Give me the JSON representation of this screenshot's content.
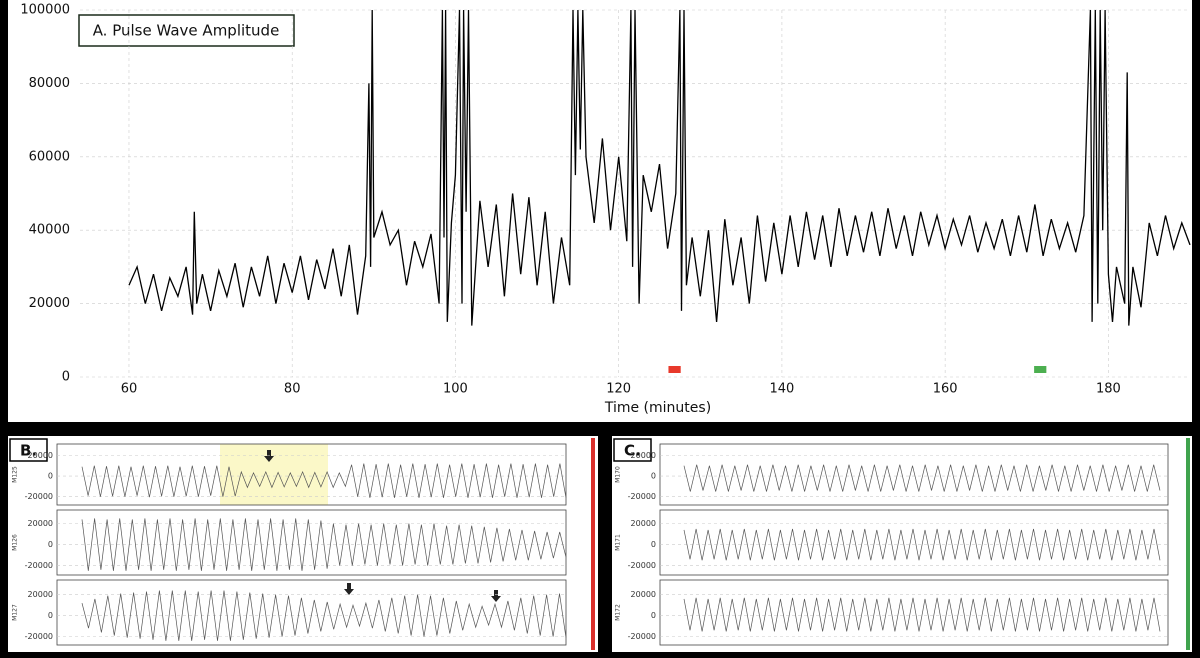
{
  "chart_data": [
    {
      "type": "line",
      "title": "A. Pulse Wave Amplitude",
      "xlabel": "Time (minutes)",
      "color": "#000000",
      "grid": true,
      "xlim": [
        54,
        190
      ],
      "xticks": [
        60,
        80,
        100,
        120,
        140,
        160,
        180
      ],
      "ylim": [
        0,
        100000
      ],
      "yticks": [
        0,
        20000,
        40000,
        60000,
        80000,
        100000
      ],
      "markers": [
        {
          "start": 126.1,
          "end": 127.6,
          "color": "#e8392b"
        },
        {
          "start": 170.9,
          "end": 172.4,
          "color": "#4caf50"
        }
      ],
      "x": [
        60,
        61,
        62,
        63,
        64,
        65,
        66,
        67,
        67.8,
        68,
        68.3,
        69,
        70,
        71,
        72,
        73,
        74,
        75,
        76,
        77,
        78,
        79,
        80,
        81,
        82,
        83,
        84,
        85,
        86,
        87,
        88,
        89,
        89.4,
        89.6,
        89.8,
        90,
        91,
        92,
        93,
        94,
        95,
        96,
        97,
        98,
        98.4,
        98.6,
        98.8,
        99,
        99.5,
        100,
        100.5,
        100.8,
        101,
        101.3,
        101.6,
        102,
        103,
        104,
        105,
        106,
        107,
        108,
        109,
        110,
        111,
        112,
        113,
        114,
        114.4,
        114.7,
        115,
        115.3,
        115.6,
        116,
        117,
        118,
        119,
        120,
        121,
        121.5,
        121.7,
        122,
        122.5,
        123,
        124,
        125,
        126,
        127,
        127.5,
        127.7,
        128,
        128.3,
        129,
        130,
        131,
        132,
        133,
        134,
        135,
        136,
        137,
        138,
        139,
        140,
        141,
        142,
        143,
        144,
        145,
        146,
        147,
        148,
        149,
        150,
        151,
        152,
        153,
        154,
        155,
        156,
        157,
        158,
        159,
        160,
        161,
        162,
        163,
        164,
        165,
        166,
        167,
        168,
        169,
        170,
        171,
        172,
        173,
        174,
        175,
        176,
        177,
        177.8,
        178,
        178.4,
        178.7,
        179,
        179.3,
        179.6,
        180,
        180.5,
        181,
        182,
        182.3,
        182.5,
        183,
        184,
        185,
        186,
        187,
        188,
        189,
        190
      ],
      "values": [
        25000,
        30000,
        20000,
        28000,
        18000,
        27000,
        22000,
        30000,
        17000,
        45000,
        20000,
        28000,
        18000,
        29000,
        22000,
        31000,
        19000,
        30000,
        22000,
        33000,
        20000,
        31000,
        23000,
        33000,
        21000,
        32000,
        24000,
        35000,
        22000,
        36000,
        17000,
        33000,
        80000,
        30000,
        100000,
        38000,
        45000,
        36000,
        40000,
        25000,
        37000,
        30000,
        39000,
        20000,
        100000,
        38000,
        100000,
        15000,
        42000,
        55000,
        100000,
        20000,
        100000,
        45000,
        100000,
        14000,
        48000,
        30000,
        47000,
        22000,
        50000,
        28000,
        49000,
        25000,
        45000,
        20000,
        38000,
        25000,
        100000,
        55000,
        100000,
        62000,
        100000,
        60000,
        42000,
        65000,
        40000,
        60000,
        37000,
        100000,
        30000,
        100000,
        20000,
        55000,
        45000,
        58000,
        35000,
        50000,
        100000,
        18000,
        100000,
        25000,
        38000,
        22000,
        40000,
        15000,
        43000,
        25000,
        38000,
        20000,
        44000,
        26000,
        42000,
        28000,
        44000,
        30000,
        45000,
        32000,
        44000,
        30000,
        46000,
        33000,
        44000,
        34000,
        45000,
        33000,
        46000,
        35000,
        44000,
        33000,
        45000,
        36000,
        44000,
        35000,
        43000,
        36000,
        44000,
        34000,
        42000,
        35000,
        43000,
        33000,
        44000,
        34000,
        47000,
        33000,
        43000,
        35000,
        42000,
        34000,
        44000,
        100000,
        15000,
        100000,
        20000,
        100000,
        40000,
        100000,
        28000,
        15000,
        30000,
        20000,
        83000,
        14000,
        30000,
        19000,
        42000,
        33000,
        44000,
        35000,
        42000,
        36000
      ]
    },
    {
      "type": "line",
      "ylabel": "M125",
      "color": "#555555",
      "grid": true,
      "ylim": [
        -28000,
        31000
      ],
      "yticks": [
        -20000,
        0,
        20000
      ],
      "values": [
        9000,
        -19000,
        10000,
        -20000,
        9500,
        -19500,
        10000,
        -20000,
        9000,
        -19000,
        10000,
        -20500,
        9500,
        -19500,
        10000,
        -20000,
        9000,
        -19500,
        10000,
        -20000,
        9500,
        -19000,
        10000,
        -20000,
        9000,
        -19500,
        4000,
        -11000,
        3000,
        -10000,
        4000,
        -11000,
        3500,
        -10500,
        3000,
        -10000,
        4000,
        -11000,
        3500,
        -10500,
        4000,
        -11000,
        3000,
        -10000,
        11000,
        -20000,
        12000,
        -21000,
        11500,
        -20500,
        12000,
        -21000,
        11000,
        -20000,
        12000,
        -21000,
        11500,
        -20500,
        12000,
        -21000,
        11000,
        -20000,
        12000,
        -21000,
        11500,
        -20500,
        12000,
        -21000,
        11000,
        -20000,
        12000,
        -21000,
        11500,
        -20500,
        12000,
        -21000,
        11000,
        -20000,
        12000,
        -21000
      ]
    },
    {
      "type": "line",
      "ylabel": "M126",
      "color": "#555555",
      "grid": true,
      "ylim": [
        -29000,
        33000
      ],
      "yticks": [
        -20000,
        0,
        20000
      ],
      "values": [
        24000,
        -25000,
        25000,
        -24000,
        24000,
        -25000,
        25000,
        -25000,
        24000,
        -24000,
        25000,
        -25000,
        24000,
        -24000,
        25000,
        -25000,
        24000,
        -24000,
        25000,
        -25000,
        24000,
        -24000,
        25000,
        -25000,
        24000,
        -24000,
        25000,
        -25000,
        24000,
        -24000,
        25000,
        -25000,
        24000,
        -24000,
        25000,
        -25000,
        24000,
        -24000,
        23000,
        -23000,
        20000,
        -20000,
        19000,
        -20000,
        20000,
        -19000,
        19000,
        -20000,
        20000,
        -19000,
        19000,
        -20000,
        20000,
        -19000,
        19000,
        -20000,
        20000,
        -19000,
        18000,
        -19000,
        19000,
        -18000,
        18000,
        -18000,
        17000,
        -17000,
        16000,
        -16000,
        15000,
        -15000,
        14000,
        -15000,
        13000,
        -14000,
        12000,
        -13000,
        12000,
        -12000
      ]
    },
    {
      "type": "line",
      "ylabel": "M127",
      "color": "#555555",
      "grid": true,
      "ylim": [
        -28000,
        34000
      ],
      "yticks": [
        -20000,
        0,
        20000
      ],
      "values": [
        12000,
        -12000,
        16000,
        -16000,
        19000,
        -19000,
        21000,
        -21000,
        22000,
        -22000,
        23000,
        -23000,
        24000,
        -24000,
        24000,
        -24000,
        24000,
        -24000,
        23000,
        -23000,
        24000,
        -24000,
        24000,
        -24000,
        23000,
        -23000,
        22000,
        -22000,
        21000,
        -21000,
        20000,
        -20000,
        19000,
        -19000,
        17000,
        -17000,
        15000,
        -15000,
        13000,
        -13000,
        11000,
        -11000,
        10000,
        -10000,
        12000,
        -12000,
        15000,
        -15000,
        17000,
        -17000,
        19000,
        -19000,
        20000,
        -20000,
        19000,
        -19000,
        17000,
        -17000,
        14000,
        -14000,
        11000,
        -11000,
        9000,
        -9000,
        11000,
        -11000,
        14000,
        -14000,
        17000,
        -17000,
        19000,
        -19000,
        20000,
        -20000,
        21000,
        -21000
      ]
    },
    {
      "type": "line",
      "ylabel": "M170",
      "color": "#555555",
      "grid": true,
      "ylim": [
        -28000,
        31000
      ],
      "yticks": [
        -20000,
        0,
        20000
      ],
      "values": [
        10000,
        -15000,
        11000,
        -14000,
        10000,
        -15000,
        11000,
        -15000,
        10000,
        -14000,
        11000,
        -15000,
        10000,
        -15000,
        11000,
        -14000,
        10000,
        -15000,
        11000,
        -15000,
        10000,
        -14000,
        11000,
        -15000,
        10000,
        -15000,
        11000,
        -14000,
        10000,
        -15000,
        11000,
        -15000,
        10000,
        -14000,
        11000,
        -15000,
        10000,
        -15000,
        11000,
        -14000,
        10000,
        -15000,
        11000,
        -15000,
        10000,
        -14000,
        11000,
        -15000,
        10000,
        -15000,
        11000,
        -14000,
        10000,
        -15000,
        11000,
        -15000,
        10000,
        -14000,
        11000,
        -15000,
        10000,
        -15000,
        11000,
        -14000,
        10000,
        -15000,
        11000,
        -15000,
        10000,
        -14000,
        11000,
        -15000,
        10000,
        -15000,
        11000,
        -14000
      ]
    },
    {
      "type": "line",
      "ylabel": "M171",
      "color": "#555555",
      "grid": true,
      "ylim": [
        -29000,
        33000
      ],
      "yticks": [
        -20000,
        0,
        20000
      ],
      "values": [
        14000,
        -14000,
        15000,
        -15000,
        14000,
        -14000,
        15000,
        -15000,
        14000,
        -14000,
        15000,
        -15000,
        14000,
        -14000,
        15000,
        -15000,
        14000,
        -14000,
        15000,
        -15000,
        14000,
        -14000,
        15000,
        -15000,
        14000,
        -14000,
        15000,
        -15000,
        14000,
        -14000,
        15000,
        -15000,
        14000,
        -14000,
        15000,
        -15000,
        14000,
        -14000,
        15000,
        -15000,
        14000,
        -14000,
        15000,
        -15000,
        14000,
        -14000,
        15000,
        -15000,
        14000,
        -14000,
        15000,
        -15000,
        14000,
        -14000,
        15000,
        -15000,
        14000,
        -14000,
        15000,
        -15000,
        14000,
        -14000,
        15000,
        -15000,
        14000,
        -14000,
        15000,
        -15000,
        14000,
        -14000,
        15000,
        -15000,
        14000,
        -14000,
        15000,
        -15000,
        14000,
        -14000,
        15000,
        -15000
      ]
    },
    {
      "type": "line",
      "ylabel": "M172",
      "color": "#555555",
      "grid": true,
      "ylim": [
        -28000,
        34000
      ],
      "yticks": [
        -20000,
        0,
        20000
      ],
      "values": [
        16000,
        -14000,
        17000,
        -15000,
        16000,
        -14000,
        17000,
        -15000,
        16000,
        -14000,
        17000,
        -15000,
        16000,
        -14000,
        17000,
        -15000,
        16000,
        -14000,
        17000,
        -15000,
        16000,
        -14000,
        17000,
        -15000,
        16000,
        -14000,
        17000,
        -15000,
        16000,
        -14000,
        17000,
        -15000,
        16000,
        -14000,
        17000,
        -15000,
        16000,
        -14000,
        17000,
        -15000,
        16000,
        -14000,
        17000,
        -15000,
        16000,
        -14000,
        17000,
        -15000,
        16000,
        -14000,
        17000,
        -15000,
        16000,
        -14000,
        17000,
        -15000,
        16000,
        -14000,
        17000,
        -15000,
        16000,
        -14000,
        17000,
        -15000,
        16000,
        -14000,
        17000,
        -15000,
        16000,
        -14000,
        17000,
        -15000,
        16000,
        -14000,
        17000,
        -15000,
        16000,
        -14000,
        17000,
        -15000
      ]
    }
  ],
  "panels": [
    {
      "label": "B.",
      "color": "#d9302c"
    },
    {
      "label": "C.",
      "color": "#3fa34d"
    }
  ]
}
